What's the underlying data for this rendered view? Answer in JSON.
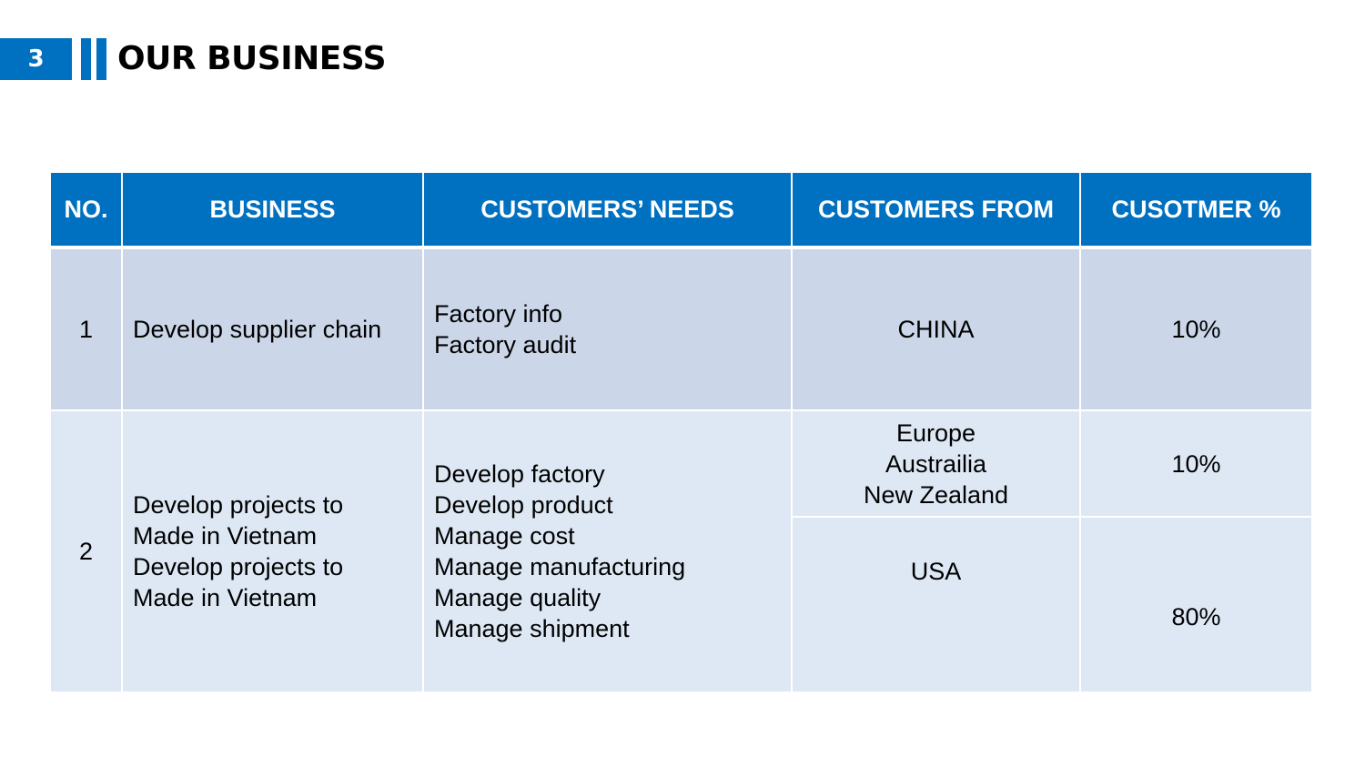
{
  "header": {
    "slide_number": "3",
    "title": "OUR BUSINESS"
  },
  "colors": {
    "accent": "#0070c0",
    "row_dark": "#cbd6e8",
    "row_light": "#dde8f4"
  },
  "table": {
    "headers": [
      "NO.",
      "BUSINESS",
      "CUSTOMERS’ NEEDS",
      "CUSTOMERS FROM",
      "CUSOTMER %"
    ],
    "rows": [
      {
        "no": "1",
        "business": [
          "Develop supplier chain"
        ],
        "needs": [
          "Factory info",
          "Factory audit"
        ],
        "markets": [
          {
            "from": [
              "CHINA"
            ],
            "percent": "10%"
          }
        ]
      },
      {
        "no": "2",
        "business": [
          "Develop projects to",
          "Made in Vietnam",
          "Develop projects to",
          "Made in Vietnam"
        ],
        "needs": [
          "Develop factory",
          "Develop product",
          "Manage cost",
          "Manage manufacturing",
          "Manage quality",
          "Manage shipment"
        ],
        "markets": [
          {
            "from": [
              "Europe",
              "Austrailia",
              "New Zealand"
            ],
            "percent": "10%"
          },
          {
            "from": [
              "USA"
            ],
            "percent": "80%"
          }
        ]
      }
    ]
  }
}
